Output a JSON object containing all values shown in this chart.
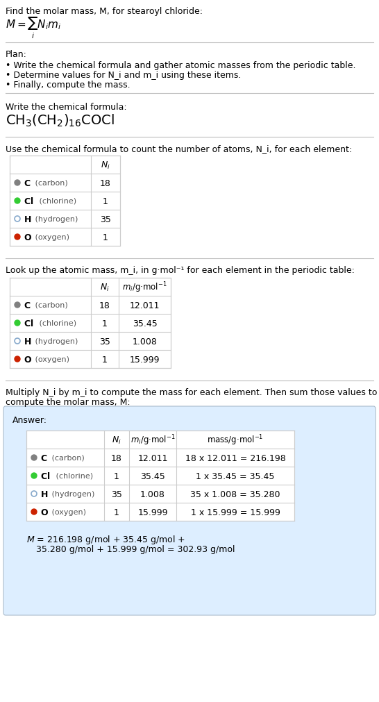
{
  "title_line1": "Find the molar mass, M, for stearoyl chloride:",
  "plan_header": "Plan:",
  "plan_items": [
    "• Write the chemical formula and gather atomic masses from the periodic table.",
    "• Determine values for N_i and m_i using these items.",
    "• Finally, compute the mass."
  ],
  "formula_header": "Write the chemical formula:",
  "table1_header": "Use the chemical formula to count the number of atoms, N_i, for each element:",
  "table2_header": "Look up the atomic mass, m_i, in g·mol⁻¹ for each element in the periodic table:",
  "table3_header_line1": "Multiply N_i by m_i to compute the mass for each element. Then sum those values to",
  "table3_header_line2": "compute the molar mass, M:",
  "elements": [
    "C (carbon)",
    "Cl (chlorine)",
    "H (hydrogen)",
    "O (oxygen)"
  ],
  "element_symbols": [
    "C",
    "Cl",
    "H",
    "O"
  ],
  "element_names": [
    "carbon",
    "chlorine",
    "hydrogen",
    "oxygen"
  ],
  "dot_colors": [
    "#808080",
    "#33cc33",
    "none",
    "#cc2200"
  ],
  "dot_edge_colors": [
    "#808080",
    "#33cc33",
    "#88aacc",
    "#cc2200"
  ],
  "N_i": [
    18,
    1,
    35,
    1
  ],
  "m_i": [
    "12.011",
    "35.45",
    "1.008",
    "15.999"
  ],
  "mass_calcs": [
    "18 x 12.011 = 216.198",
    "1 x 35.45 = 35.45",
    "35 x 1.008 = 35.280",
    "1 x 15.999 = 15.999"
  ],
  "final_line1": "M = 216.198 g/mol + 35.45 g/mol +",
  "final_line2": "  35.280 g/mol + 15.999 g/mol = 302.93 g/mol",
  "bg_color": "#ffffff",
  "answer_box_bg": "#ddeeff",
  "separator_color": "#bbbbbb"
}
